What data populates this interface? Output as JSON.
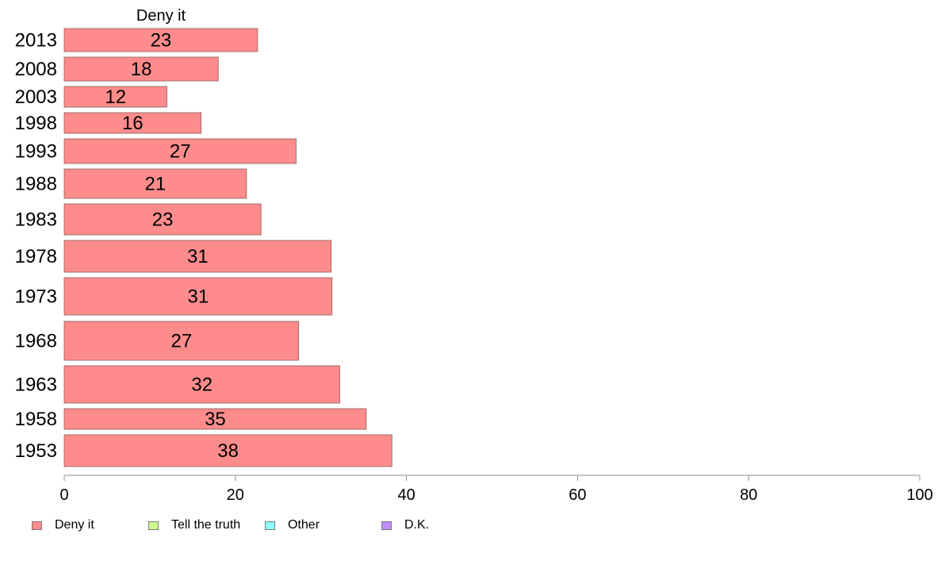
{
  "chart_data": {
    "type": "bar",
    "orientation": "horizontal",
    "title": "Deny it",
    "xlim": [
      0,
      100
    ],
    "x_ticks": [
      0,
      20,
      40,
      60,
      80,
      100
    ],
    "grid": false,
    "legend_position": "bottom",
    "categories": [
      "2013",
      "2008",
      "2003",
      "1998",
      "1993",
      "1988",
      "1983",
      "1978",
      "1973",
      "1968",
      "1963",
      "1958",
      "1953"
    ],
    "series": [
      {
        "name": "Deny it",
        "color": "#ff8c8c",
        "values": [
          22.6,
          18,
          12,
          16,
          27.1,
          21.3,
          23,
          31.2,
          31.3,
          27.4,
          32.2,
          35.3,
          38.3
        ],
        "labels": [
          "23",
          "18",
          "12",
          "16",
          "27",
          "21",
          "23",
          "31",
          "31",
          "27",
          "32",
          "35",
          "38"
        ]
      }
    ],
    "legend": [
      {
        "label": "Deny it",
        "color": "#ff8c8c"
      },
      {
        "label": "Tell the truth",
        "color": "#ccff8c"
      },
      {
        "label": "Other",
        "color": "#8cffff"
      },
      {
        "label": "D.K.",
        "color": "#c08cff"
      }
    ]
  }
}
